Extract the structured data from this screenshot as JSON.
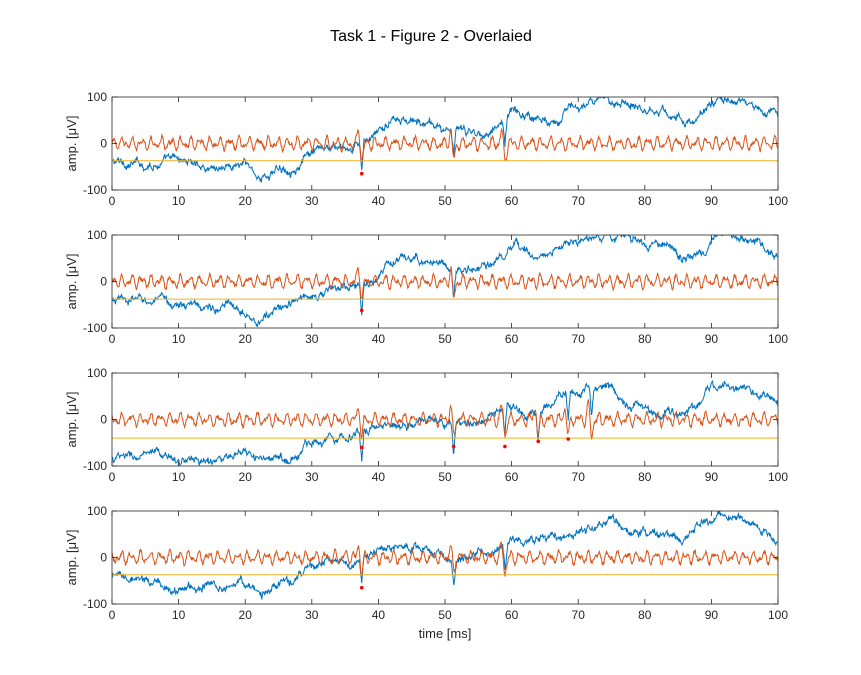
{
  "figure": {
    "title": "Task 1 - Figure 2 - Overlaied",
    "colors": {
      "background": "#ffffff",
      "axes": "#262626",
      "raw_signal": "#0072BD",
      "filtered_signal": "#D95319",
      "threshold": "#EDB120",
      "detections": "#FF0000"
    }
  },
  "chart_data": [
    {
      "type": "line",
      "panel": 1,
      "xlabel": "",
      "ylabel": "amp. [μV]",
      "xlim": [
        0,
        100
      ],
      "ylim": [
        -100,
        100
      ],
      "xticks": [
        0,
        10,
        20,
        30,
        40,
        50,
        60,
        70,
        80,
        90,
        100
      ],
      "yticks": [
        -100,
        0,
        100
      ],
      "threshold": -37,
      "spikes": [
        37.5,
        51.3,
        59.0
      ],
      "detections": [
        {
          "x": 37.5,
          "y": -65
        }
      ],
      "raw_trend": [
        [
          0,
          -40
        ],
        [
          5,
          -45
        ],
        [
          10,
          -35
        ],
        [
          15,
          -50
        ],
        [
          20,
          -45
        ],
        [
          22.5,
          -75
        ],
        [
          25,
          -55
        ],
        [
          28,
          -45
        ],
        [
          30,
          -25
        ],
        [
          33,
          -10
        ],
        [
          36,
          -20
        ],
        [
          38,
          5
        ],
        [
          40,
          20
        ],
        [
          42,
          50
        ],
        [
          45,
          45
        ],
        [
          48,
          40
        ],
        [
          50,
          30
        ],
        [
          52,
          25
        ],
        [
          55,
          20
        ],
        [
          58,
          40
        ],
        [
          60,
          70
        ],
        [
          62,
          65
        ],
        [
          65,
          50
        ],
        [
          67,
          60
        ],
        [
          70,
          80
        ],
        [
          73,
          85
        ],
        [
          76,
          95
        ],
        [
          78,
          90
        ],
        [
          80,
          80
        ],
        [
          83,
          70
        ],
        [
          85,
          60
        ],
        [
          87,
          40
        ],
        [
          88,
          50
        ],
        [
          90,
          90
        ],
        [
          93,
          95
        ],
        [
          96,
          80
        ],
        [
          98,
          70
        ],
        [
          100,
          60
        ]
      ]
    },
    {
      "type": "line",
      "panel": 2,
      "xlabel": "",
      "ylabel": "amp. [μV]",
      "xlim": [
        0,
        100
      ],
      "ylim": [
        -100,
        100
      ],
      "xticks": [
        0,
        10,
        20,
        30,
        40,
        50,
        60,
        70,
        80,
        90,
        100
      ],
      "yticks": [
        -100,
        0,
        100
      ],
      "threshold": -38,
      "spikes": [
        37.5,
        51.3
      ],
      "detections": [
        {
          "x": 37.5,
          "y": -62
        }
      ],
      "raw_trend": [
        [
          0,
          -45
        ],
        [
          5,
          -40
        ],
        [
          10,
          -50
        ],
        [
          15,
          -55
        ],
        [
          20,
          -55
        ],
        [
          22.5,
          -85
        ],
        [
          25,
          -60
        ],
        [
          28,
          -40
        ],
        [
          30,
          -30
        ],
        [
          33,
          -20
        ],
        [
          36,
          -10
        ],
        [
          38,
          -10
        ],
        [
          40,
          10
        ],
        [
          42,
          40
        ],
        [
          45,
          50
        ],
        [
          48,
          45
        ],
        [
          50,
          40
        ],
        [
          52,
          20
        ],
        [
          55,
          25
        ],
        [
          58,
          45
        ],
        [
          60,
          60
        ],
        [
          62,
          70
        ],
        [
          65,
          55
        ],
        [
          67,
          70
        ],
        [
          70,
          85
        ],
        [
          73,
          95
        ],
        [
          76,
          100
        ],
        [
          78,
          90
        ],
        [
          80,
          80
        ],
        [
          83,
          75
        ],
        [
          85,
          55
        ],
        [
          87,
          50
        ],
        [
          89,
          65
        ],
        [
          91,
          95
        ],
        [
          94,
          90
        ],
        [
          97,
          80
        ],
        [
          100,
          50
        ]
      ]
    },
    {
      "type": "line",
      "panel": 3,
      "xlabel": "",
      "ylabel": "amp. [μV]",
      "xlim": [
        0,
        100
      ],
      "ylim": [
        -100,
        100
      ],
      "xticks": [
        0,
        10,
        20,
        30,
        40,
        50,
        60,
        70,
        80,
        90,
        100
      ],
      "yticks": [
        -100,
        0,
        100
      ],
      "threshold": -40,
      "spikes": [
        37.5,
        51.3,
        59.0,
        64.0,
        68.5,
        72.0
      ],
      "detections": [
        {
          "x": 37.5,
          "y": -60
        },
        {
          "x": 51.3,
          "y": -58
        },
        {
          "x": 59.0,
          "y": -58
        },
        {
          "x": 64.0,
          "y": -47
        },
        {
          "x": 68.5,
          "y": -42
        }
      ],
      "raw_trend": [
        [
          0,
          -85
        ],
        [
          5,
          -80
        ],
        [
          10,
          -85
        ],
        [
          15,
          -90
        ],
        [
          20,
          -80
        ],
        [
          25,
          -90
        ],
        [
          28,
          -75
        ],
        [
          30,
          -45
        ],
        [
          33,
          -35
        ],
        [
          36,
          -30
        ],
        [
          38,
          -20
        ],
        [
          40,
          -20
        ],
        [
          42,
          -10
        ],
        [
          45,
          -5
        ],
        [
          48,
          0
        ],
        [
          50,
          -10
        ],
        [
          52,
          -15
        ],
        [
          55,
          -5
        ],
        [
          58,
          10
        ],
        [
          60,
          20
        ],
        [
          62,
          5
        ],
        [
          64,
          20
        ],
        [
          66,
          40
        ],
        [
          68,
          55
        ],
        [
          70,
          60
        ],
        [
          73,
          70
        ],
        [
          75,
          65
        ],
        [
          77,
          40
        ],
        [
          80,
          20
        ],
        [
          83,
          10
        ],
        [
          85,
          5
        ],
        [
          88,
          30
        ],
        [
          90,
          80
        ],
        [
          93,
          70
        ],
        [
          96,
          60
        ],
        [
          98,
          50
        ],
        [
          100,
          30
        ]
      ]
    },
    {
      "type": "line",
      "panel": 4,
      "xlabel": "time [ms]",
      "ylabel": "amp. [μV]",
      "xlim": [
        0,
        100
      ],
      "ylim": [
        -100,
        100
      ],
      "xticks": [
        0,
        10,
        20,
        30,
        40,
        50,
        60,
        70,
        80,
        90,
        100
      ],
      "yticks": [
        -100,
        0,
        100
      ],
      "threshold": -37,
      "spikes": [
        37.5,
        51.3,
        59.0
      ],
      "detections": [
        {
          "x": 37.5,
          "y": -65
        }
      ],
      "raw_trend": [
        [
          0,
          -45
        ],
        [
          5,
          -55
        ],
        [
          10,
          -65
        ],
        [
          15,
          -60
        ],
        [
          20,
          -55
        ],
        [
          22.5,
          -80
        ],
        [
          25,
          -60
        ],
        [
          28,
          -40
        ],
        [
          30,
          -20
        ],
        [
          33,
          -10
        ],
        [
          36,
          -25
        ],
        [
          38,
          0
        ],
        [
          40,
          20
        ],
        [
          42,
          25
        ],
        [
          45,
          20
        ],
        [
          48,
          10
        ],
        [
          50,
          0
        ],
        [
          52,
          -5
        ],
        [
          55,
          10
        ],
        [
          58,
          20
        ],
        [
          60,
          40
        ],
        [
          62,
          30
        ],
        [
          64,
          35
        ],
        [
          66,
          50
        ],
        [
          68,
          55
        ],
        [
          70,
          60
        ],
        [
          72,
          70
        ],
        [
          75,
          80
        ],
        [
          77,
          60
        ],
        [
          80,
          55
        ],
        [
          83,
          40
        ],
        [
          85,
          40
        ],
        [
          87,
          45
        ],
        [
          89,
          75
        ],
        [
          91,
          90
        ],
        [
          94,
          85
        ],
        [
          97,
          70
        ],
        [
          100,
          40
        ]
      ]
    }
  ]
}
